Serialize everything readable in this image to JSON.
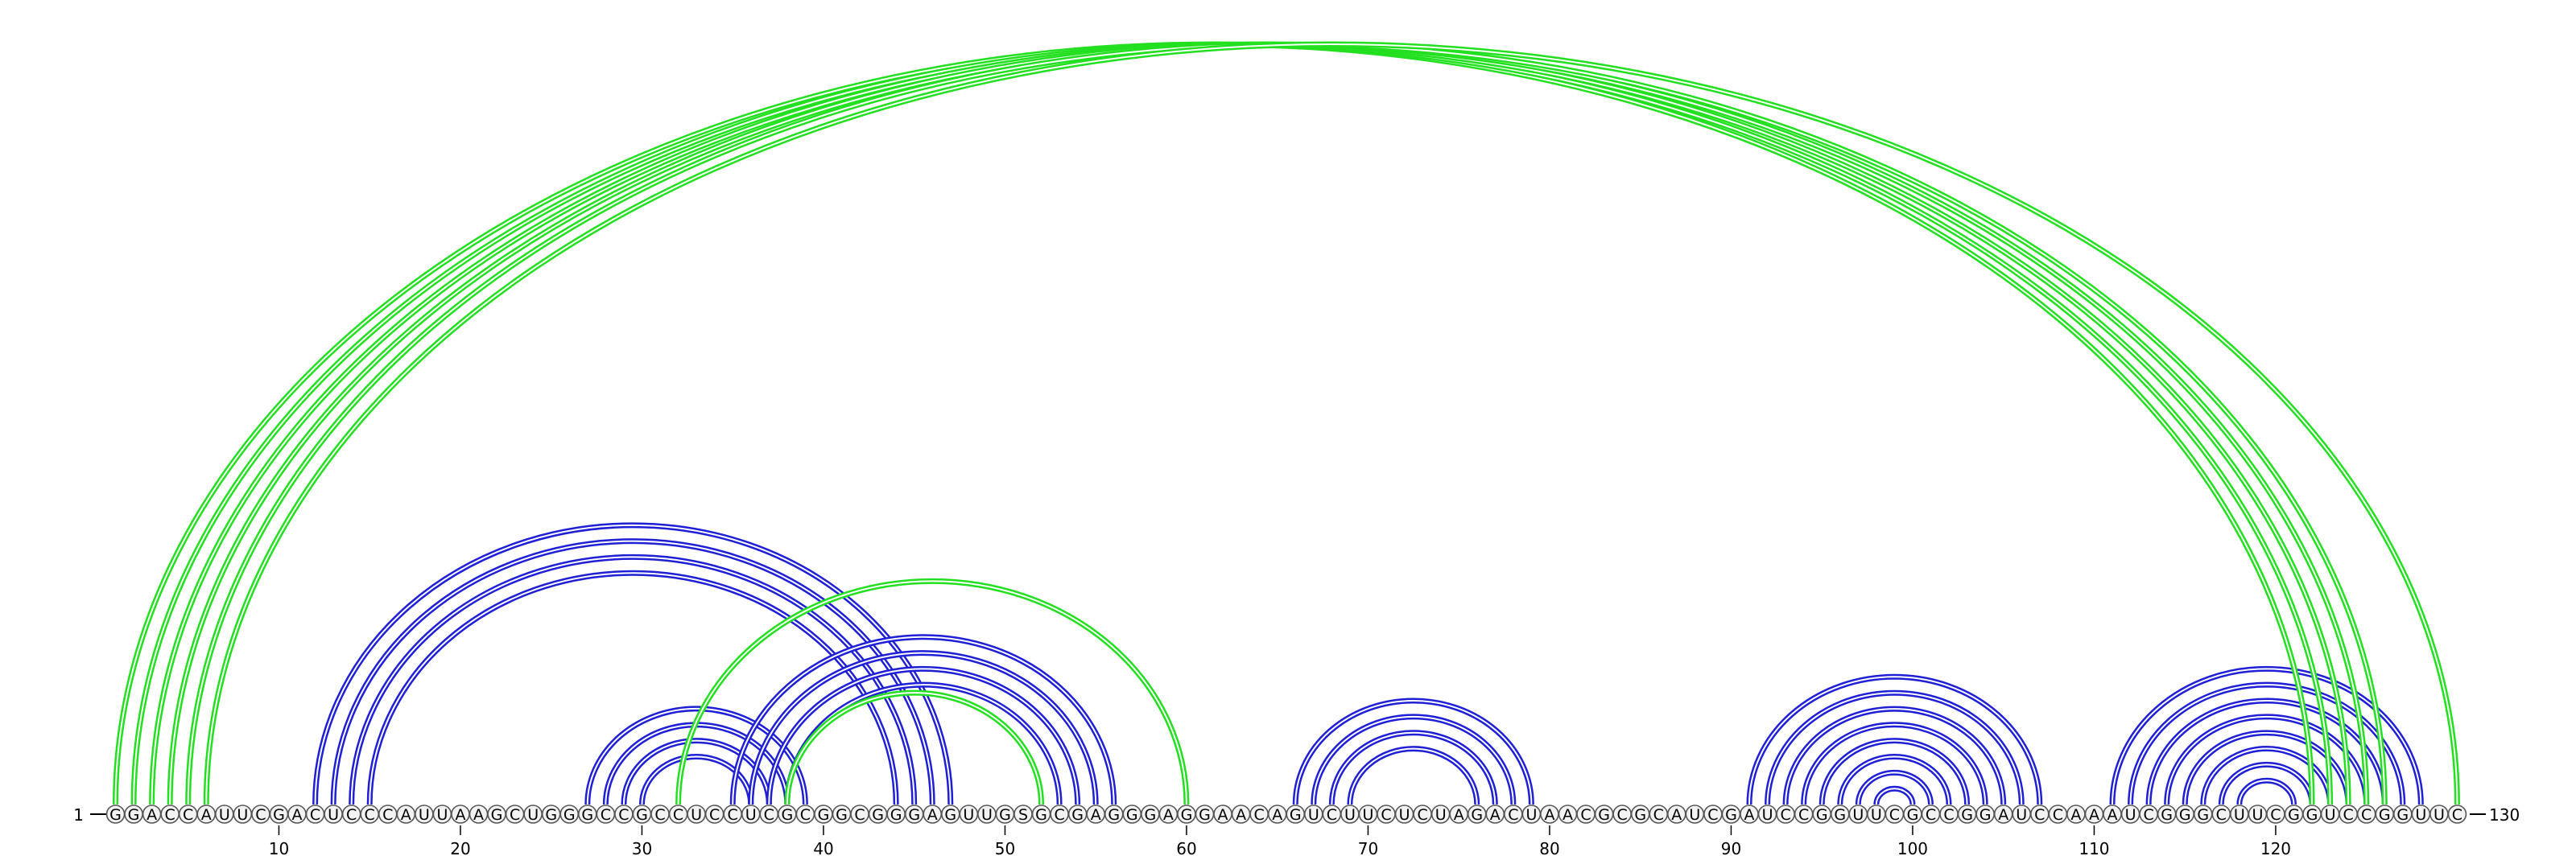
{
  "sequence": "GGACCAUUCGACUCCCAUUAAGCUGGGCCGCCUCCUCGCGGCGGGAGUUGSGCGAGGGAGGAACAGUCUUCUCUAGACUAACGCGCAUCGAUCCGGUUCGCCGGAUCCAAAUCGGGCUUCGGUCCGGUUC",
  "start_label": "1",
  "end_label": "130",
  "ticks": [
    10,
    20,
    30,
    40,
    50,
    60,
    70,
    80,
    90,
    100,
    110,
    120
  ],
  "colors": {
    "blue_arc": "#1f1fd6",
    "green_arc": "#22e01f",
    "base_fill": "#f2f2f2",
    "base_stroke": "#555555",
    "text": "#000000"
  },
  "blue_arcs": [
    {
      "i": 12,
      "j": 47
    },
    {
      "i": 13,
      "j": 46
    },
    {
      "i": 14,
      "j": 45
    },
    {
      "i": 15,
      "j": 44
    },
    {
      "i": 27,
      "j": 39
    },
    {
      "i": 28,
      "j": 38
    },
    {
      "i": 29,
      "j": 37
    },
    {
      "i": 30,
      "j": 36
    },
    {
      "i": 35,
      "j": 56
    },
    {
      "i": 36,
      "j": 55
    },
    {
      "i": 37,
      "j": 54
    },
    {
      "i": 38,
      "j": 53
    },
    {
      "i": 66,
      "j": 79
    },
    {
      "i": 67,
      "j": 78
    },
    {
      "i": 68,
      "j": 77
    },
    {
      "i": 69,
      "j": 76
    },
    {
      "i": 91,
      "j": 107
    },
    {
      "i": 92,
      "j": 106
    },
    {
      "i": 93,
      "j": 105
    },
    {
      "i": 94,
      "j": 104
    },
    {
      "i": 95,
      "j": 103
    },
    {
      "i": 96,
      "j": 102
    },
    {
      "i": 97,
      "j": 101
    },
    {
      "i": 98,
      "j": 100
    },
    {
      "i": 111,
      "j": 128
    },
    {
      "i": 112,
      "j": 127
    },
    {
      "i": 113,
      "j": 126
    },
    {
      "i": 114,
      "j": 125
    },
    {
      "i": 115,
      "j": 124
    },
    {
      "i": 116,
      "j": 123
    },
    {
      "i": 117,
      "j": 122
    },
    {
      "i": 118,
      "j": 121
    }
  ],
  "green_arcs": [
    {
      "i": 1,
      "j": 122
    },
    {
      "i": 2,
      "j": 123
    },
    {
      "i": 3,
      "j": 124
    },
    {
      "i": 4,
      "j": 125
    },
    {
      "i": 5,
      "j": 126
    },
    {
      "i": 6,
      "j": 130
    },
    {
      "i": 32,
      "j": 60
    },
    {
      "i": 38,
      "j": 52
    }
  ]
}
